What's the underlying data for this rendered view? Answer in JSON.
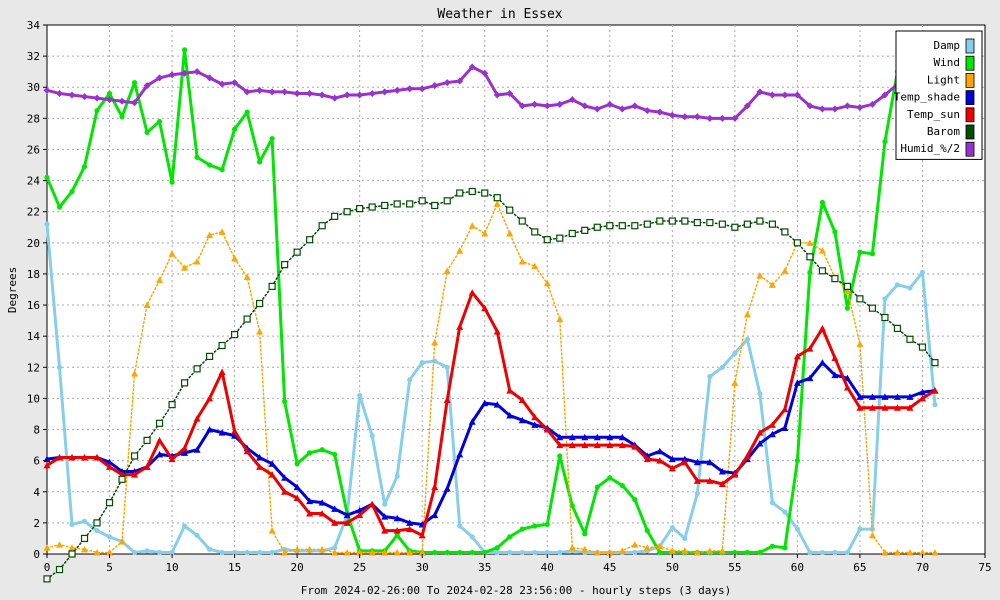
{
  "chart_data": {
    "type": "line",
    "title": "Weather in Essex",
    "ylabel": "Degrees",
    "xlabel": "From 2024-02-26:00 To 2024-02-28 23:56:00 - hourly steps (3 days)",
    "xlim": [
      0,
      75
    ],
    "ylim": [
      0,
      34
    ],
    "x_ticks": [
      0,
      5,
      10,
      15,
      20,
      25,
      30,
      35,
      40,
      45,
      50,
      55,
      60,
      65,
      70,
      75
    ],
    "y_ticks": [
      0,
      2,
      4,
      6,
      8,
      10,
      12,
      14,
      16,
      18,
      20,
      22,
      24,
      26,
      28,
      30,
      32,
      34
    ],
    "grid": true,
    "legend_position": "top-right",
    "series": [
      {
        "name": "Damp",
        "color": "#87ceeb",
        "marker": "circle",
        "style": "solid",
        "values": [
          21.2,
          12,
          1.9,
          2.1,
          1.5,
          1.1,
          0.8,
          0.1,
          0.2,
          0.1,
          0.1,
          1.8,
          1.2,
          0.3,
          0.1,
          0.1,
          0.1,
          0.1,
          0.1,
          0.3,
          0.2,
          0.2,
          0.2,
          0.4,
          2.5,
          10.2,
          7.6,
          3.2,
          5,
          11.2,
          12.3,
          12.4,
          12,
          1.8,
          1.1,
          0.1,
          0.1,
          0.1,
          0.1,
          0.1,
          0.1,
          0.1,
          0.2,
          0.1,
          0.1,
          0.1,
          0.1,
          0.1,
          0.2,
          0.5,
          1.7,
          1,
          3.9,
          11.4,
          12,
          12.9,
          13.8,
          10.3,
          3.3,
          2.7,
          1.6,
          0.1,
          0.1,
          0.1,
          0.1,
          1.6,
          1.6,
          16.4,
          17.3,
          17.1,
          18.1,
          9.6
        ]
      },
      {
        "name": "Wind",
        "color": "#00e600",
        "marker": "circle",
        "style": "solid",
        "values": [
          24.2,
          22.3,
          23.3,
          24.9,
          28.5,
          29.6,
          28.1,
          30.3,
          27.1,
          27.8,
          23.9,
          32.4,
          25.5,
          25,
          24.7,
          27.3,
          28.4,
          25.2,
          26.7,
          9.8,
          5.8,
          6.5,
          6.7,
          6.4,
          2.6,
          0.2,
          0.2,
          0.2,
          1.2,
          0.2,
          0.1,
          0.1,
          0.1,
          0.1,
          0.1,
          0.1,
          0.4,
          1.1,
          1.6,
          1.8,
          1.9,
          6.3,
          3.1,
          1.3,
          4.3,
          4.9,
          4.4,
          3.5,
          1.5,
          0.1,
          0.1,
          0.1,
          0.1,
          0.1,
          0.1,
          0.1,
          0.1,
          0.1,
          0.5,
          0.4,
          6,
          18.1,
          22.6,
          20.7,
          15.8,
          19.4,
          19.3,
          26.5,
          31,
          null,
          null,
          null
        ]
      },
      {
        "name": "Light",
        "color": "#ffa500",
        "marker": "triangle",
        "style": "dotted",
        "values": [
          0.4,
          0.6,
          0.4,
          0.3,
          0.1,
          0.1,
          0.8,
          11.6,
          16,
          17.6,
          19.3,
          18.4,
          18.8,
          20.5,
          20.7,
          19,
          17.8,
          14.3,
          1.5,
          0.1,
          0.3,
          0.3,
          0.3,
          0.1,
          0.1,
          0.1,
          0.1,
          0.1,
          0.1,
          0.1,
          0.1,
          13.6,
          18.2,
          19.5,
          21.1,
          20.6,
          22.5,
          20.6,
          18.8,
          18.5,
          17.4,
          15.1,
          0.4,
          0.3,
          0.1,
          0.1,
          0.2,
          0.6,
          0.4,
          0.5,
          0.2,
          0.2,
          0.1,
          0.2,
          0.2,
          11,
          15.4,
          17.9,
          17.3,
          18.2,
          20,
          20,
          19.5,
          17.8,
          16.9,
          13.5,
          1.2,
          0.1,
          0.1,
          0.1,
          0.1,
          0.1
        ]
      },
      {
        "name": "Temp_shade",
        "color": "#0000dd",
        "marker": "triangle",
        "style": "solid",
        "values": [
          6.1,
          6.2,
          6.2,
          6.2,
          6.2,
          5.9,
          5.3,
          5.3,
          5.6,
          6.4,
          6.3,
          6.5,
          6.7,
          8,
          7.8,
          7.6,
          6.8,
          6.2,
          5.8,
          4.9,
          4.3,
          3.4,
          3.3,
          2.9,
          2.5,
          2.8,
          3.2,
          2.4,
          2.3,
          2,
          1.9,
          2.5,
          4.2,
          6.4,
          8.5,
          9.7,
          9.6,
          8.9,
          8.6,
          8.3,
          8.1,
          7.5,
          7.5,
          7.5,
          7.5,
          7.5,
          7.5,
          7,
          6.3,
          6.6,
          6.1,
          6.1,
          5.9,
          5.9,
          5.3,
          5.2,
          6.1,
          7.1,
          7.7,
          8.1,
          11,
          11.3,
          12.3,
          11.5,
          11.3,
          10.1,
          10.1,
          10.1,
          10.1,
          10.1,
          10.4,
          10.5
        ]
      },
      {
        "name": "Temp_sun",
        "color": "#ee0000",
        "marker": "triangle",
        "style": "solid",
        "values": [
          5.7,
          6.2,
          6.2,
          6.2,
          6.2,
          5.6,
          5.1,
          5.1,
          5.6,
          7.3,
          6.1,
          6.8,
          8.7,
          10,
          11.7,
          7.9,
          6.6,
          5.6,
          5.1,
          4,
          3.6,
          2.6,
          2.6,
          2,
          2,
          2.5,
          3.2,
          1.5,
          1.5,
          1.6,
          1.2,
          4.3,
          9.9,
          14.6,
          16.8,
          15.8,
          14.3,
          10.5,
          9.9,
          8.8,
          8,
          7,
          7,
          7,
          7,
          7,
          7,
          6.9,
          6.1,
          6,
          5.5,
          5.9,
          4.7,
          4.7,
          4.5,
          5.1,
          6.3,
          7.8,
          8.3,
          9.3,
          12.7,
          13.2,
          14.5,
          12.6,
          10.7,
          9.4,
          9.4,
          9.4,
          9.4,
          9.4,
          10,
          10.5
        ]
      },
      {
        "name": "Barom",
        "color": "#004d00",
        "marker": "square",
        "style": "dotted",
        "values": [
          -1.6,
          -1,
          0,
          1,
          2,
          3.3,
          4.8,
          6.3,
          7.3,
          8.4,
          9.6,
          11,
          11.9,
          12.7,
          13.4,
          14.1,
          15.1,
          16.1,
          17.2,
          18.6,
          19.4,
          20.2,
          21.1,
          21.7,
          22,
          22.2,
          22.3,
          22.4,
          22.5,
          22.5,
          22.7,
          22.4,
          22.7,
          23.2,
          23.3,
          23.2,
          22.9,
          22.1,
          21.4,
          20.7,
          20.2,
          20.3,
          20.6,
          20.8,
          21,
          21.1,
          21.1,
          21.1,
          21.2,
          21.4,
          21.4,
          21.4,
          21.3,
          21.3,
          21.2,
          21,
          21.2,
          21.4,
          21.2,
          20.7,
          20,
          19.1,
          18.2,
          17.7,
          17.2,
          16.4,
          15.8,
          15.2,
          14.5,
          13.8,
          13.3,
          12.3
        ]
      },
      {
        "name": "Humid_%/2",
        "color": "#9932cc",
        "marker": "diamond",
        "style": "solid",
        "values": [
          29.8,
          29.6,
          29.5,
          29.4,
          29.3,
          29.2,
          29.1,
          29,
          30.1,
          30.6,
          30.8,
          30.9,
          31,
          30.6,
          30.2,
          30.3,
          29.7,
          29.8,
          29.7,
          29.7,
          29.6,
          29.6,
          29.5,
          29.3,
          29.5,
          29.5,
          29.6,
          29.7,
          29.8,
          29.9,
          29.9,
          30.1,
          30.3,
          30.4,
          31.3,
          30.9,
          29.5,
          29.6,
          28.8,
          28.9,
          28.8,
          28.9,
          29.2,
          28.8,
          28.6,
          28.9,
          28.6,
          28.8,
          28.5,
          28.4,
          28.2,
          28.1,
          28.1,
          28,
          28,
          28,
          28.8,
          29.7,
          29.5,
          29.5,
          29.5,
          28.8,
          28.6,
          28.6,
          28.8,
          28.7,
          28.9,
          29.5,
          30.2,
          null,
          null,
          null
        ]
      }
    ]
  }
}
